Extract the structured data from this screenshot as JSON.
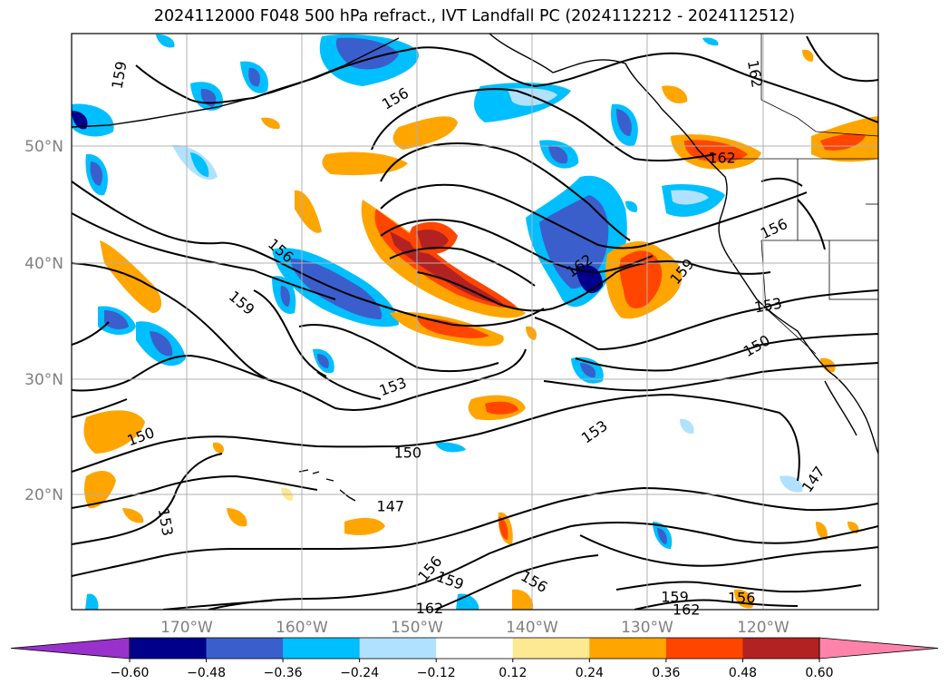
{
  "title": "2024112000 F048 500 hPa refract., IVT Landfall PC (2024112212 - 2024112512)",
  "map": {
    "lat_labels": [
      "50°N",
      "40°N",
      "30°N",
      "20°N"
    ],
    "lon_labels": [
      "170°W",
      "160°W",
      "150°W",
      "140°W",
      "130°W",
      "120°W"
    ],
    "contour_labels": [
      {
        "text": "159",
        "lon": -175.9,
        "lat": 56.2,
        "rot": -80
      },
      {
        "text": "156",
        "lon": -151.9,
        "lat": 54.2,
        "rot": -30
      },
      {
        "text": "162",
        "lon": -120.6,
        "lat": 56.3,
        "rot": 80
      },
      {
        "text": "162",
        "lon": -123.5,
        "lat": 49.1,
        "rot": 0
      },
      {
        "text": "156",
        "lon": -119.0,
        "lat": 43.0,
        "rot": -25
      },
      {
        "text": "156",
        "lon": -161.8,
        "lat": 41.1,
        "rot": 40
      },
      {
        "text": "162",
        "lon": -135.9,
        "lat": 39.8,
        "rot": -35
      },
      {
        "text": "159",
        "lon": -127.0,
        "lat": 39.3,
        "rot": -50
      },
      {
        "text": "153",
        "lon": -119.5,
        "lat": 36.4,
        "rot": -10
      },
      {
        "text": "150",
        "lon": -120.5,
        "lat": 32.9,
        "rot": -30
      },
      {
        "text": "159",
        "lon": -165.2,
        "lat": 36.6,
        "rot": 40
      },
      {
        "text": "153",
        "lon": -152.1,
        "lat": 29.4,
        "rot": -20
      },
      {
        "text": "150",
        "lon": -174.0,
        "lat": 25.1,
        "rot": -20
      },
      {
        "text": "150",
        "lon": -150.8,
        "lat": 23.7,
        "rot": 0
      },
      {
        "text": "153",
        "lon": -134.6,
        "lat": 25.5,
        "rot": -35
      },
      {
        "text": "147",
        "lon": -115.6,
        "lat": 21.4,
        "rot": -55
      },
      {
        "text": "153",
        "lon": -171.8,
        "lat": 17.7,
        "rot": 80
      },
      {
        "text": "147",
        "lon": -152.3,
        "lat": 19.1,
        "rot": 0
      },
      {
        "text": "156",
        "lon": -148.9,
        "lat": 13.7,
        "rot": -50
      },
      {
        "text": "159",
        "lon": -147.1,
        "lat": 12.7,
        "rot": 20
      },
      {
        "text": "156",
        "lon": -139.8,
        "lat": 12.6,
        "rot": 30
      },
      {
        "text": "162",
        "lon": -148.9,
        "lat": 10.3,
        "rot": 0
      },
      {
        "text": "159",
        "lon": -127.6,
        "lat": 11.3,
        "rot": 0
      },
      {
        "text": "162",
        "lon": -126.6,
        "lat": 10.2,
        "rot": 0
      },
      {
        "text": "156",
        "lon": -121.8,
        "lat": 11.2,
        "rot": 0
      }
    ]
  },
  "colorbar": {
    "colors": [
      "#9932cc",
      "#00008b",
      "#3a5fcd",
      "#00bfff",
      "#b0e2ff",
      "#ffffff",
      "#fce992",
      "#ffa500",
      "#ff4500",
      "#b22222",
      "#ff82ab"
    ],
    "tick_labels": [
      "−0.60",
      "−0.48",
      "−0.36",
      "−0.24",
      "−0.12",
      "0.12",
      "0.24",
      "0.36",
      "0.48",
      "0.60"
    ]
  }
}
